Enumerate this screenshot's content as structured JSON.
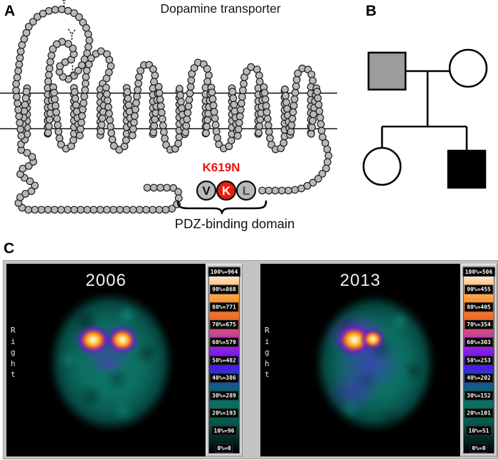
{
  "panel_a": {
    "label": "A",
    "title": "Dopamine transporter",
    "mutation_label": "K619N",
    "residues": [
      "V",
      "K",
      "L"
    ],
    "mutated_residue_index": 1,
    "domain_label": "PDZ-binding domain"
  },
  "panel_b": {
    "label": "B",
    "members": [
      {
        "role": "father",
        "shape": "square",
        "fill": "#9c9c9c"
      },
      {
        "role": "mother",
        "shape": "circle",
        "fill": "#ffffff"
      },
      {
        "role": "daughter",
        "shape": "circle",
        "fill": "#ffffff"
      },
      {
        "role": "son",
        "shape": "square",
        "fill": "#000000"
      }
    ]
  },
  "panel_c": {
    "label": "C",
    "scans": [
      {
        "year": "2006",
        "side_label": "Right",
        "scale_ticks": [
          "100%=964",
          "90%=868",
          "80%=771",
          "70%=675",
          "60%=579",
          "50%=482",
          "40%=386",
          "30%=289",
          "20%=193",
          "10%=96",
          "0%=0"
        ]
      },
      {
        "year": "2013",
        "side_label": "Right",
        "scale_ticks": [
          "100%=506",
          "90%=455",
          "80%=405",
          "70%=354",
          "60%=303",
          "50%=253",
          "40%=202",
          "30%=152",
          "20%=101",
          "10%=51",
          "0%=0"
        ]
      }
    ]
  },
  "colors": {
    "residue_fill": "#b9b9b9",
    "mutation_red": "#e8150c",
    "mutated_residue_fill": "#ee1c0c",
    "carrier_gray": "#9c9c9c",
    "affected_black": "#000000",
    "scan_teal": "#0c6e61",
    "hotspot_orange": "#ff9d1c"
  }
}
